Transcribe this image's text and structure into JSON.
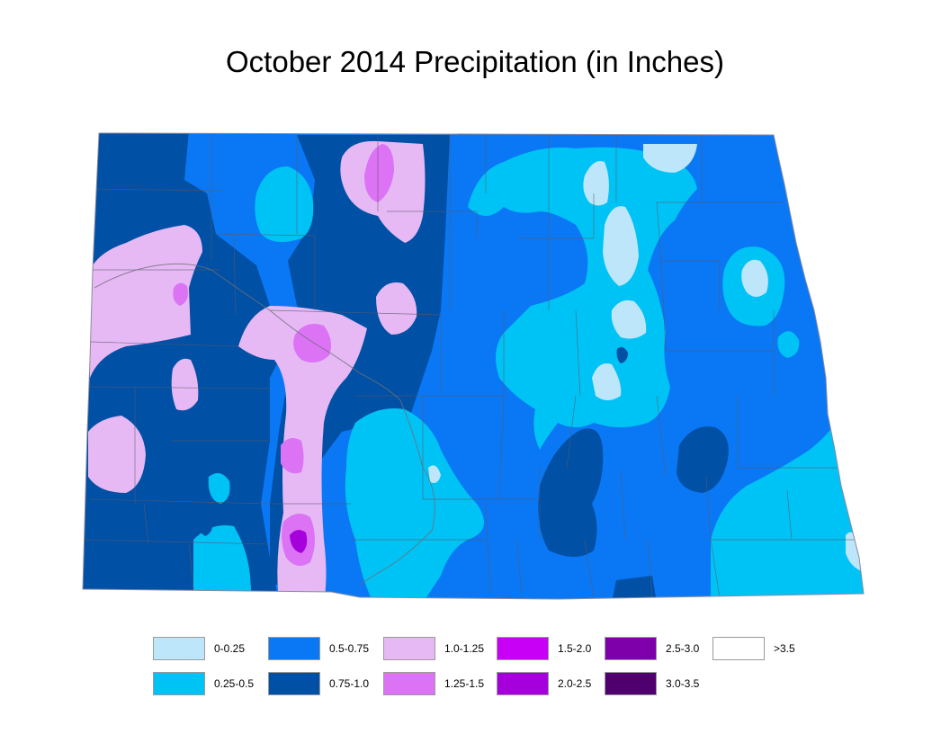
{
  "title": "October 2014 Precipitation (in Inches)",
  "legend": [
    {
      "label": "0-0.25",
      "color": "#bee6fa"
    },
    {
      "label": "0.25-0.5",
      "color": "#00c3f5"
    },
    {
      "label": "0.5-0.75",
      "color": "#0a78f5"
    },
    {
      "label": "0.75-1.0",
      "color": "#0050a5"
    },
    {
      "label": "1.0-1.25",
      "color": "#e6b9f5"
    },
    {
      "label": "1.25-1.5",
      "color": "#dc73f5"
    },
    {
      "label": "1.5-2.0",
      "color": "#c800f5"
    },
    {
      "label": "2.0-2.5",
      "color": "#a500dc"
    },
    {
      "label": "2.5-3.0",
      "color": "#7d00aa"
    },
    {
      "label": "3.0-3.5",
      "color": "#50006e"
    },
    {
      "label": ">3.5",
      "color": "#ffffff"
    }
  ]
}
